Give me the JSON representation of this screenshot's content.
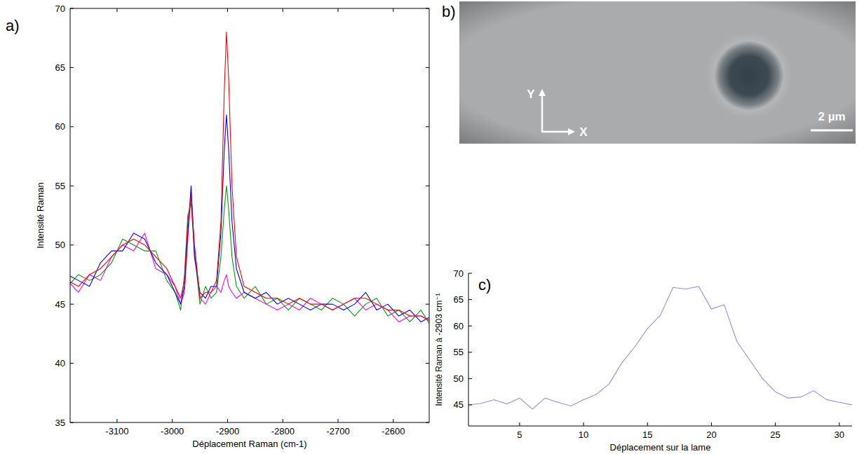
{
  "chart_data": [
    {
      "type": "line",
      "panel_label": "a)",
      "x_label": "Déplacement Raman (cm-1)",
      "y_label": "Intensité Raman",
      "x": [
        -3190,
        -3170,
        -3150,
        -3130,
        -3110,
        -3090,
        -3070,
        -3050,
        -3030,
        -3010,
        -2995,
        -2985,
        -2978,
        -2972,
        -2966,
        -2960,
        -2950,
        -2940,
        -2930,
        -2920,
        -2912,
        -2906,
        -2902,
        -2898,
        -2892,
        -2884,
        -2870,
        -2850,
        -2830,
        -2810,
        -2790,
        -2770,
        -2750,
        -2730,
        -2710,
        -2690,
        -2670,
        -2650,
        -2630,
        -2610,
        -2590,
        -2570,
        -2550,
        -2530,
        -2510
      ],
      "series": [
        {
          "color": "#00a000",
          "values": [
            46.5,
            47.5,
            47,
            47.5,
            48.5,
            50.5,
            50,
            49.5,
            49.5,
            47,
            46,
            44.5,
            47.5,
            52.5,
            53.5,
            49.5,
            45,
            46.5,
            45.5,
            46,
            49,
            53,
            55,
            53,
            49,
            46.5,
            45.5,
            46.5,
            45,
            45.5,
            44.5,
            45.5,
            45,
            44.5,
            45.5,
            45,
            44,
            45,
            45.5,
            44,
            44.5,
            43.5,
            44.5,
            43,
            44
          ]
        },
        {
          "color": "#ff00ff",
          "values": [
            47,
            46,
            47.5,
            47,
            49,
            50,
            49.5,
            51,
            48,
            47.5,
            46.5,
            45,
            46,
            50.5,
            54.5,
            50,
            45.5,
            45,
            46,
            46.5,
            46,
            47,
            47.5,
            46.5,
            46,
            45.5,
            46,
            45.5,
            45,
            44.5,
            45,
            44.5,
            45.5,
            45,
            44.5,
            45,
            45.5,
            44.5,
            45,
            44.5,
            43.5,
            44,
            44,
            43.5,
            43.5
          ]
        },
        {
          "color": "#0000ff",
          "values": [
            47.5,
            47,
            46.5,
            48.5,
            49.5,
            49.5,
            51,
            50.5,
            48.5,
            47.5,
            46,
            45,
            46.5,
            51,
            55,
            49,
            46,
            45.5,
            46.5,
            46.5,
            51,
            58,
            61,
            58,
            52,
            48,
            46,
            45.5,
            46,
            45,
            45.5,
            45,
            44.5,
            45,
            45,
            44.5,
            45,
            46,
            44.5,
            45,
            44,
            44.5,
            43.5,
            44,
            43.5
          ]
        },
        {
          "color": "#ff0000",
          "values": [
            47,
            46.5,
            47.5,
            48,
            49,
            50,
            50.5,
            50,
            49,
            48,
            46.5,
            45.5,
            47,
            52,
            54,
            50,
            45.5,
            46,
            46,
            47,
            52,
            63,
            68,
            64,
            55,
            49,
            46.5,
            46,
            45.5,
            45.5,
            45,
            45.5,
            45,
            45,
            44.5,
            45,
            45.5,
            45.5,
            45,
            44.5,
            44.5,
            44,
            44,
            43.5,
            44
          ]
        }
      ],
      "xlim": [
        -3185,
        -2535
      ],
      "xticks": [
        -3100,
        -3000,
        -2900,
        -2800,
        -2700,
        -2600
      ],
      "ylim": [
        35,
        70
      ],
      "yticks": [
        35,
        40,
        45,
        50,
        55,
        60,
        65,
        70
      ],
      "grid": false
    },
    {
      "type": "line",
      "panel_label": "c)",
      "x_label": "Déplacement sur la lame",
      "y_label": "Intensité Raman à -2903 cm⁻¹",
      "x": [
        1,
        2,
        3,
        4,
        5,
        6,
        7,
        8,
        9,
        10,
        11,
        12,
        13,
        14,
        15,
        16,
        17,
        18,
        19,
        20,
        21,
        22,
        23,
        24,
        25,
        26,
        27,
        28,
        29,
        30,
        31
      ],
      "values": [
        45,
        45.3,
        46,
        45.2,
        46.3,
        44.2,
        46.3,
        45.5,
        44.8,
        46,
        47,
        49,
        53,
        56,
        59.5,
        62,
        67.3,
        67,
        67.5,
        63.2,
        64,
        57,
        53.5,
        50,
        47.5,
        46.3,
        46.5,
        47.7,
        46,
        45.5,
        45
      ],
      "color": "#8f8fef",
      "xlim": [
        1,
        31
      ],
      "xticks": [
        5,
        10,
        15,
        20,
        25,
        30
      ],
      "ylim": [
        41,
        70
      ],
      "yticks": [
        45,
        50,
        55,
        60,
        65,
        70
      ],
      "grid": false
    }
  ],
  "image": {
    "panel_label": "b)",
    "y_axis": "Y",
    "x_axis": "X",
    "scale_bar": "2 µm"
  }
}
